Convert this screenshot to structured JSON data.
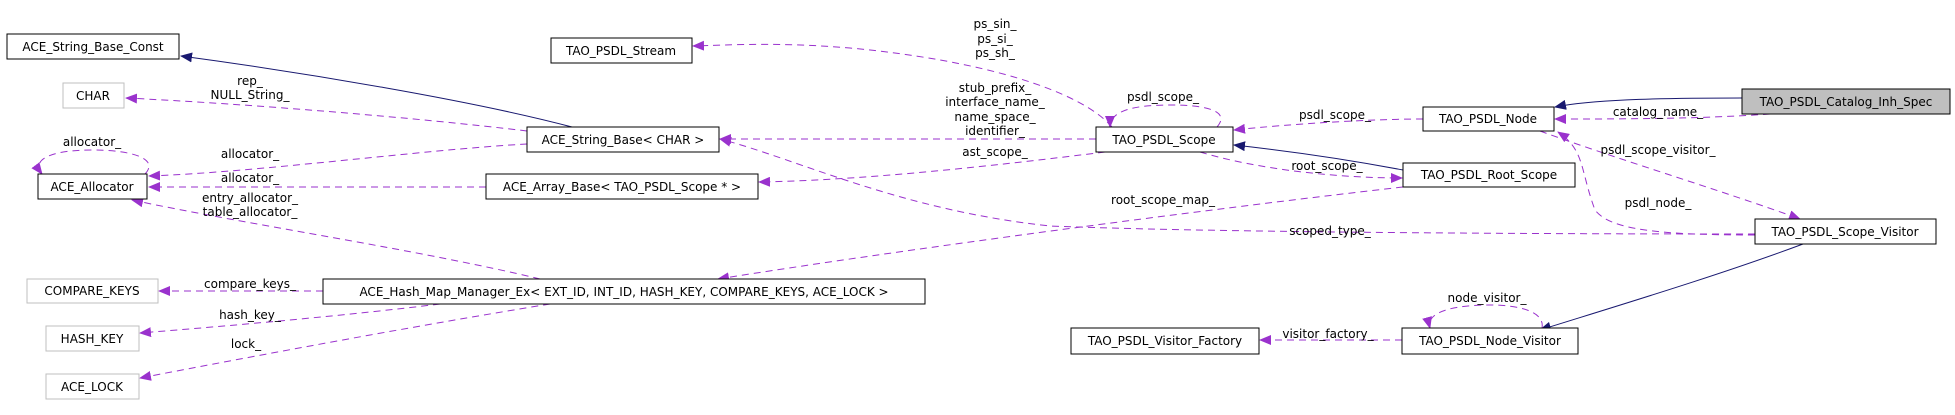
{
  "colors": {
    "usage_edge": "#9a32cd",
    "inheritance_edge": "#191970",
    "focus_fill": "#bfbfbf",
    "external_border": "#bfbfbf"
  },
  "nodes": {
    "string_base_const": "ACE_String_Base_Const",
    "psdl_stream": "TAO_PSDL_Stream",
    "char": "CHAR",
    "string_base": "ACE_String_Base< CHAR >",
    "allocator": "ACE_Allocator",
    "array_base": "ACE_Array_Base< TAO_PSDL_Scope * >",
    "psdl_scope": "TAO_PSDL_Scope",
    "psdl_node": "TAO_PSDL_Node",
    "catalog_inh_spec": "TAO_PSDL_Catalog_Inh_Spec",
    "root_scope": "TAO_PSDL_Root_Scope",
    "scope_visitor": "TAO_PSDL_Scope_Visitor",
    "compare_keys": "COMPARE_KEYS",
    "hash_map": "ACE_Hash_Map_Manager_Ex< EXT_ID, INT_ID, HASH_KEY, COMPARE_KEYS, ACE_LOCK >",
    "hash_key": "HASH_KEY",
    "ace_lock": "ACE_LOCK",
    "visitor_factory": "TAO_PSDL_Visitor_Factory",
    "node_visitor": "TAO_PSDL_Node_Visitor"
  },
  "edge_labels": {
    "rep": "rep_",
    "null_string": "NULL_String_",
    "allocator_self": "allocator_",
    "allocator_string": "allocator_",
    "allocator_array": "allocator_",
    "entry_allocator": "entry_allocator_",
    "table_allocator": "table_allocator_",
    "ps_sin": "ps_sin_",
    "ps_si": "ps_si_",
    "ps_sh": "ps_sh_",
    "stub_prefix": "stub_prefix_",
    "interface_name": "interface_name_",
    "name_space": "name_space_",
    "identifier": "identifier_",
    "psdl_scope_self": "psdl_scope_",
    "psdl_scope_node": "psdl_scope_",
    "ast_scope": "ast_scope_",
    "root_scope": "root_scope_",
    "root_scope_map": "root_scope_map_",
    "scoped_type": "scoped_type_",
    "catalog_name": "catalog_name_",
    "psdl_scope_visitor": "psdl_scope_visitor_",
    "psdl_node": "psdl_node_",
    "node_visitor": "node_visitor_",
    "visitor_factory": "visitor_factory_",
    "compare_keys": "compare_keys_",
    "hash_key": "hash_key_",
    "lock": "lock_"
  }
}
